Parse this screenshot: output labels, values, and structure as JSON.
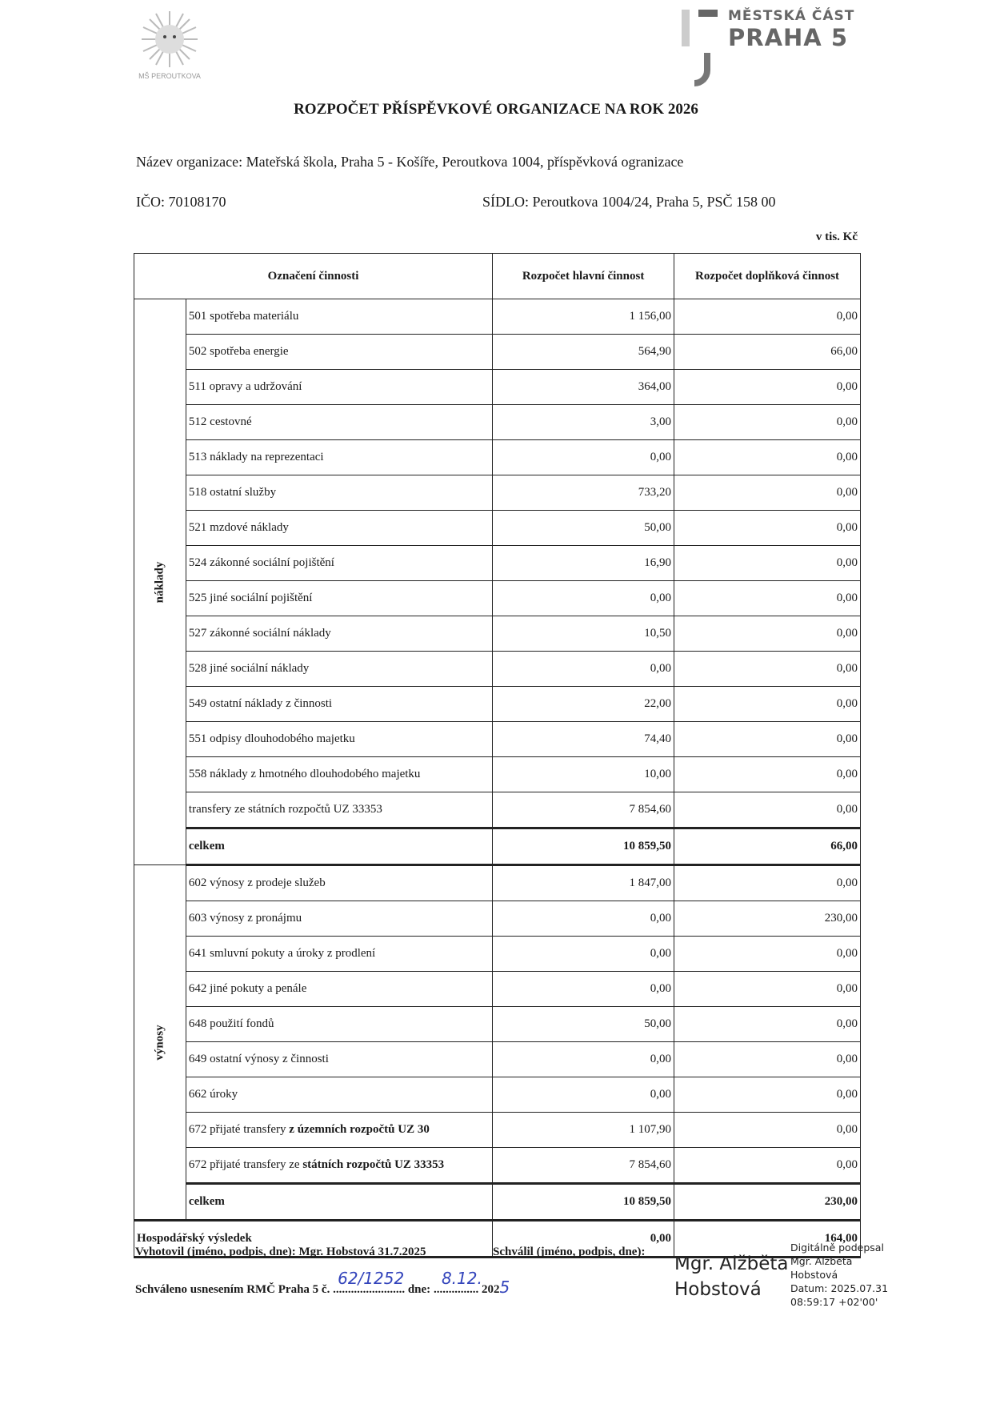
{
  "logos": {
    "left_text": "MŠ PEROUTKOVA",
    "right_line1": "MĚSTSKÁ ČÁST",
    "right_line2": "PRAHA 5"
  },
  "title": "ROZPOČET PŘÍSPĚVKOVÉ ORGANIZACE NA ROK 2026",
  "org_name": "Název organizace: Mateřská škola, Praha 5 - Košíře, Peroutkova 1004, příspěvková ogranizace",
  "ico": "IČO:  70108170",
  "sidlo": "SÍDLO: Peroutkova 1004/24, Praha 5, PSČ 158 00",
  "unit": "v tis. Kč",
  "table": {
    "headers": [
      "Označení činnosti",
      "Rozpočet hlavní činnost",
      "Rozpočet doplňková činnost"
    ],
    "naklady_label": "náklady",
    "naklady": [
      {
        "label": "501 spotřeba materiálu",
        "main": "1 156,00",
        "extra": "0,00"
      },
      {
        "label": "502 spotřeba energie",
        "main": "564,90",
        "extra": "66,00"
      },
      {
        "label": "511 opravy a udržování",
        "main": "364,00",
        "extra": "0,00"
      },
      {
        "label": "512 cestovné",
        "main": "3,00",
        "extra": "0,00"
      },
      {
        "label": "513 náklady na reprezentaci",
        "main": "0,00",
        "extra": "0,00"
      },
      {
        "label": "518 ostatní služby",
        "main": "733,20",
        "extra": "0,00"
      },
      {
        "label": "521 mzdové náklady",
        "main": "50,00",
        "extra": "0,00"
      },
      {
        "label": "524 zákonné sociální pojištění",
        "main": "16,90",
        "extra": "0,00"
      },
      {
        "label": "525 jiné sociální pojištění",
        "main": "0,00",
        "extra": "0,00"
      },
      {
        "label": "527 zákonné sociální náklady",
        "main": "10,50",
        "extra": "0,00"
      },
      {
        "label": "528 jiné sociální náklady",
        "main": "0,00",
        "extra": "0,00"
      },
      {
        "label": "549 ostatní náklady z činnosti",
        "main": "22,00",
        "extra": "0,00"
      },
      {
        "label": "551 odpisy dlouhodobého majetku",
        "main": "74,40",
        "extra": "0,00"
      },
      {
        "label": "558 náklady z hmotného dlouhodobého majetku",
        "main": "10,00",
        "extra": "0,00"
      },
      {
        "label": "transfery ze státních rozpočtů UZ 33353",
        "main": "7 854,60",
        "extra": "0,00"
      }
    ],
    "naklady_total": {
      "label": "celkem",
      "main": "10 859,50",
      "extra": "66,00"
    },
    "vynosy_label": "výnosy",
    "vynosy": [
      {
        "label": "602 výnosy z prodeje služeb",
        "main": "1 847,00",
        "extra": "0,00"
      },
      {
        "label": "603 výnosy z pronájmu",
        "main": "0,00",
        "extra": "230,00"
      },
      {
        "label": "641 smluvní pokuty a úroky z prodlení",
        "main": "0,00",
        "extra": "0,00"
      },
      {
        "label": "642 jiné pokuty a penále",
        "main": "0,00",
        "extra": "0,00"
      },
      {
        "label": "648 použití fondů",
        "main": "50,00",
        "extra": "0,00"
      },
      {
        "label": "649 ostatní výnosy z činnosti",
        "main": "0,00",
        "extra": "0,00"
      },
      {
        "label": "662 úroky",
        "main": "0,00",
        "extra": "0,00"
      },
      {
        "label": "672 přijaté transfery ",
        "label_bold": "z územních rozpočtů UZ 30",
        "main": "1 107,90",
        "extra": "0,00"
      },
      {
        "label": "672 přijaté transfery ze ",
        "label_bold": "státních rozpočtů UZ 33353",
        "main": "7 854,60",
        "extra": "0,00"
      }
    ],
    "vynosy_total": {
      "label": "celkem",
      "main": "10 859,50",
      "extra": "230,00"
    },
    "result": {
      "label": "Hospodářský výsledek",
      "main": "0,00",
      "extra": "164,00"
    }
  },
  "footer": {
    "vyhotovil": "Vyhotovil (jméno, podpis, dne): Mgr. Hobstová 31.7.2025",
    "schvalil": "Schválil (jméno, podpis, dne):",
    "schvaleno_prefix": "Schváleno usnesením RMČ Praha 5 č.",
    "schvaleno_number": "62/1252",
    "dne_label": "dne:",
    "dne_value": "8.12.",
    "year_prefix": "202",
    "year_suffix": "5",
    "signature_name_line1": "Mgr. Alžběta",
    "signature_name_line2": "Hobstová",
    "signature_details": [
      "Digitálně podepsal",
      "Mgr. Alžběta",
      "Hobstová",
      "Datum: 2025.07.31",
      "08:59:17 +02'00'"
    ]
  }
}
